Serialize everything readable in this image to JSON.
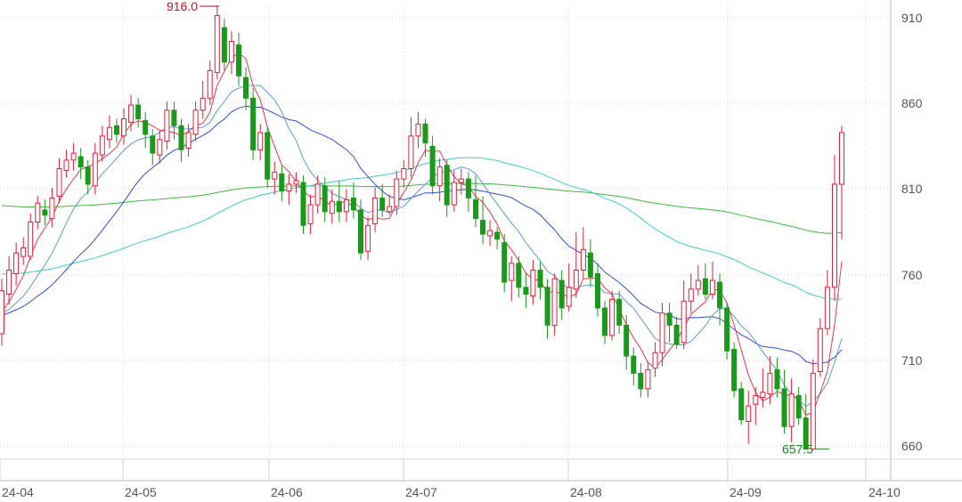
{
  "chart_data": {
    "type": "candlestick",
    "title": "",
    "xlabel": "",
    "ylabel": "",
    "ylim": [
      652,
      916
    ],
    "y_ticks": [
      "910",
      "860",
      "810",
      "760",
      "710",
      "660"
    ],
    "x_ticks": [
      "24-04",
      "24-05",
      "24-06",
      "24-07",
      "24-08",
      "24-09",
      "24-10"
    ],
    "grid": true,
    "legend": "none",
    "annotations": [
      {
        "label": "916.0",
        "value": 916.0,
        "date": "24-05-23",
        "color": "#c8102e"
      },
      {
        "label": "657.5",
        "value": 657.5,
        "date": "24-09-23",
        "color": "#1a8c1a"
      }
    ],
    "colors": {
      "up": "#e0203a",
      "down": "#1a9a1a",
      "ma5": "#e8364f",
      "ma10": "#5f9ad6",
      "ma20": "#2f4fd0",
      "ma60": "#40cccc",
      "ma120": "#3dbb3d"
    },
    "series": [
      {
        "values": [
          [
            725,
            750,
            757,
            718
          ],
          [
            748,
            762,
            770,
            742
          ],
          [
            760,
            772,
            778,
            753
          ],
          [
            770,
            775,
            781,
            765
          ],
          [
            770,
            790,
            795,
            768
          ],
          [
            790,
            801,
            805,
            786
          ],
          [
            797,
            794,
            803,
            788
          ],
          [
            792,
            804,
            810,
            787
          ],
          [
            805,
            821,
            827,
            801
          ],
          [
            820,
            826,
            832,
            816
          ],
          [
            826,
            830,
            836,
            820
          ],
          [
            828,
            822,
            833,
            815
          ],
          [
            822,
            812,
            826,
            806
          ],
          [
            811,
            830,
            836,
            806
          ],
          [
            829,
            840,
            846,
            825
          ],
          [
            838,
            845,
            852,
            833
          ],
          [
            846,
            841,
            850,
            836
          ],
          [
            840,
            850,
            856,
            835
          ],
          [
            848,
            858,
            864,
            843
          ],
          [
            858,
            850,
            862,
            845
          ],
          [
            849,
            841,
            854,
            833
          ],
          [
            840,
            830,
            844,
            823
          ],
          [
            829,
            838,
            843,
            824
          ],
          [
            837,
            855,
            860,
            832
          ],
          [
            855,
            846,
            860,
            838
          ],
          [
            846,
            832,
            850,
            825
          ],
          [
            833,
            842,
            847,
            828
          ],
          [
            841,
            855,
            860,
            837
          ],
          [
            855,
            862,
            872,
            850
          ],
          [
            862,
            878,
            884,
            858
          ],
          [
            877,
            910,
            916,
            873
          ],
          [
            903,
            883,
            908,
            878
          ],
          [
            883,
            895,
            901,
            876
          ],
          [
            893,
            875,
            900,
            869
          ],
          [
            874,
            862,
            880,
            855
          ],
          [
            862,
            832,
            868,
            826
          ],
          [
            832,
            842,
            847,
            826
          ],
          [
            842,
            815,
            846,
            810
          ],
          [
            815,
            819,
            825,
            806
          ],
          [
            818,
            808,
            823,
            802
          ],
          [
            808,
            812,
            818,
            800
          ],
          [
            812,
            814,
            819,
            807
          ],
          [
            813,
            788,
            817,
            783
          ],
          [
            789,
            800,
            806,
            783
          ],
          [
            800,
            812,
            817,
            795
          ],
          [
            811,
            796,
            816,
            790
          ],
          [
            795,
            802,
            809,
            789
          ],
          [
            802,
            796,
            814,
            790
          ],
          [
            796,
            803,
            809,
            790
          ],
          [
            804,
            797,
            813,
            792
          ],
          [
            797,
            772,
            803,
            768
          ],
          [
            773,
            788,
            793,
            768
          ],
          [
            789,
            804,
            810,
            784
          ],
          [
            804,
            797,
            812,
            793
          ],
          [
            796,
            799,
            806,
            794
          ],
          [
            799,
            815,
            820,
            794
          ],
          [
            815,
            821,
            826,
            810
          ],
          [
            821,
            840,
            851,
            816
          ],
          [
            840,
            847,
            854,
            833
          ],
          [
            847,
            836,
            850,
            828
          ],
          [
            834,
            811,
            840,
            806
          ],
          [
            811,
            822,
            827,
            802
          ],
          [
            823,
            800,
            826,
            793
          ],
          [
            800,
            813,
            820,
            796
          ],
          [
            813,
            815,
            821,
            806
          ],
          [
            815,
            804,
            819,
            796
          ],
          [
            803,
            792,
            817,
            787
          ],
          [
            791,
            783,
            805,
            777
          ],
          [
            782,
            785,
            791,
            776
          ],
          [
            784,
            780,
            787,
            774
          ],
          [
            778,
            755,
            783,
            749
          ],
          [
            756,
            766,
            770,
            744
          ],
          [
            766,
            752,
            770,
            746
          ],
          [
            752,
            748,
            760,
            740
          ],
          [
            747,
            762,
            768,
            742
          ],
          [
            762,
            752,
            767,
            745
          ],
          [
            752,
            730,
            757,
            722
          ],
          [
            730,
            757,
            760,
            724
          ],
          [
            756,
            740,
            762,
            733
          ],
          [
            741,
            752,
            766,
            738
          ],
          [
            751,
            762,
            784,
            746
          ],
          [
            762,
            774,
            787,
            757
          ],
          [
            772,
            758,
            780,
            752
          ],
          [
            760,
            740,
            766,
            735
          ],
          [
            740,
            724,
            744,
            719
          ],
          [
            724,
            745,
            750,
            721
          ],
          [
            745,
            730,
            750,
            725
          ],
          [
            730,
            712,
            736,
            704
          ],
          [
            712,
            702,
            717,
            695
          ],
          [
            702,
            693,
            708,
            688
          ],
          [
            693,
            704,
            709,
            688
          ],
          [
            705,
            714,
            720,
            700
          ],
          [
            714,
            737,
            743,
            706
          ],
          [
            737,
            730,
            743,
            720
          ],
          [
            730,
            719,
            735,
            716
          ],
          [
            720,
            744,
            756,
            716
          ],
          [
            744,
            751,
            760,
            737
          ],
          [
            751,
            756,
            765,
            747
          ],
          [
            757,
            748,
            766,
            745
          ],
          [
            748,
            756,
            767,
            745
          ],
          [
            755,
            740,
            760,
            730
          ],
          [
            740,
            715,
            743,
            710
          ],
          [
            716,
            692,
            720,
            688
          ],
          [
            693,
            675,
            697,
            672
          ],
          [
            674,
            683,
            692,
            661
          ],
          [
            684,
            689,
            694,
            672
          ],
          [
            688,
            691,
            705,
            682
          ],
          [
            690,
            702,
            712,
            684
          ],
          [
            704,
            693,
            711,
            688
          ],
          [
            693,
            671,
            704,
            667
          ],
          [
            671,
            690,
            699,
            662
          ],
          [
            689,
            676,
            694,
            672
          ],
          [
            676,
            658,
            690,
            657.5
          ],
          [
            658,
            702,
            710,
            657.5
          ],
          [
            703,
            728,
            734,
            700
          ],
          [
            728,
            752,
            762,
            724
          ],
          [
            752,
            812,
            829,
            744
          ],
          [
            812,
            842,
            846,
            780
          ]
        ]
      },
      {
        "name": "",
        "values": []
      }
    ]
  }
}
